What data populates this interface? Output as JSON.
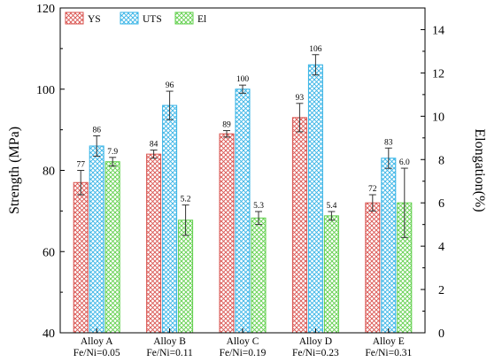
{
  "chart_data": {
    "type": "bar",
    "categories": [
      [
        "Alloy A",
        "Fe/Ni=0.05"
      ],
      [
        "Alloy B",
        "Fe/Ni=0.11"
      ],
      [
        "Alloy C",
        "Fe/Ni=0.19"
      ],
      [
        "Alloy D",
        "Fe/Ni=0.23"
      ],
      [
        "Alloy E",
        "Fe/Ni=0.31"
      ]
    ],
    "series": [
      {
        "name": "YS",
        "axis": "left",
        "color": "#d9534f",
        "values": [
          77,
          84,
          89,
          93,
          72
        ],
        "labels": [
          "77",
          "84",
          "89",
          "93",
          "72"
        ],
        "errors": [
          3,
          1,
          0.8,
          3.5,
          2
        ]
      },
      {
        "name": "UTS",
        "axis": "left",
        "color": "#36b3e6",
        "values": [
          86,
          96,
          100,
          106,
          83
        ],
        "labels": [
          "86",
          "96",
          "100",
          "106",
          "83"
        ],
        "errors": [
          2.5,
          3.5,
          1,
          2.5,
          2.5
        ]
      },
      {
        "name": "El",
        "axis": "right",
        "color": "#5fcf4a",
        "values": [
          7.9,
          5.2,
          5.3,
          5.4,
          6.0
        ],
        "labels": [
          "7.9",
          "5.2",
          "5.3",
          "5.4",
          "6.0"
        ],
        "errors": [
          0.2,
          0.7,
          0.3,
          0.2,
          1.6
        ]
      }
    ],
    "ylabel_left": "Strength (MPa)",
    "ylabel_right": "Elongation(%)",
    "ylim_left": [
      40,
      120
    ],
    "ylim_right": [
      0,
      15
    ],
    "yticks_left": [
      40,
      60,
      80,
      100,
      120
    ],
    "yticks_right": [
      0,
      2,
      4,
      6,
      8,
      10,
      12,
      14
    ],
    "legend": "top-left",
    "grid": false
  }
}
